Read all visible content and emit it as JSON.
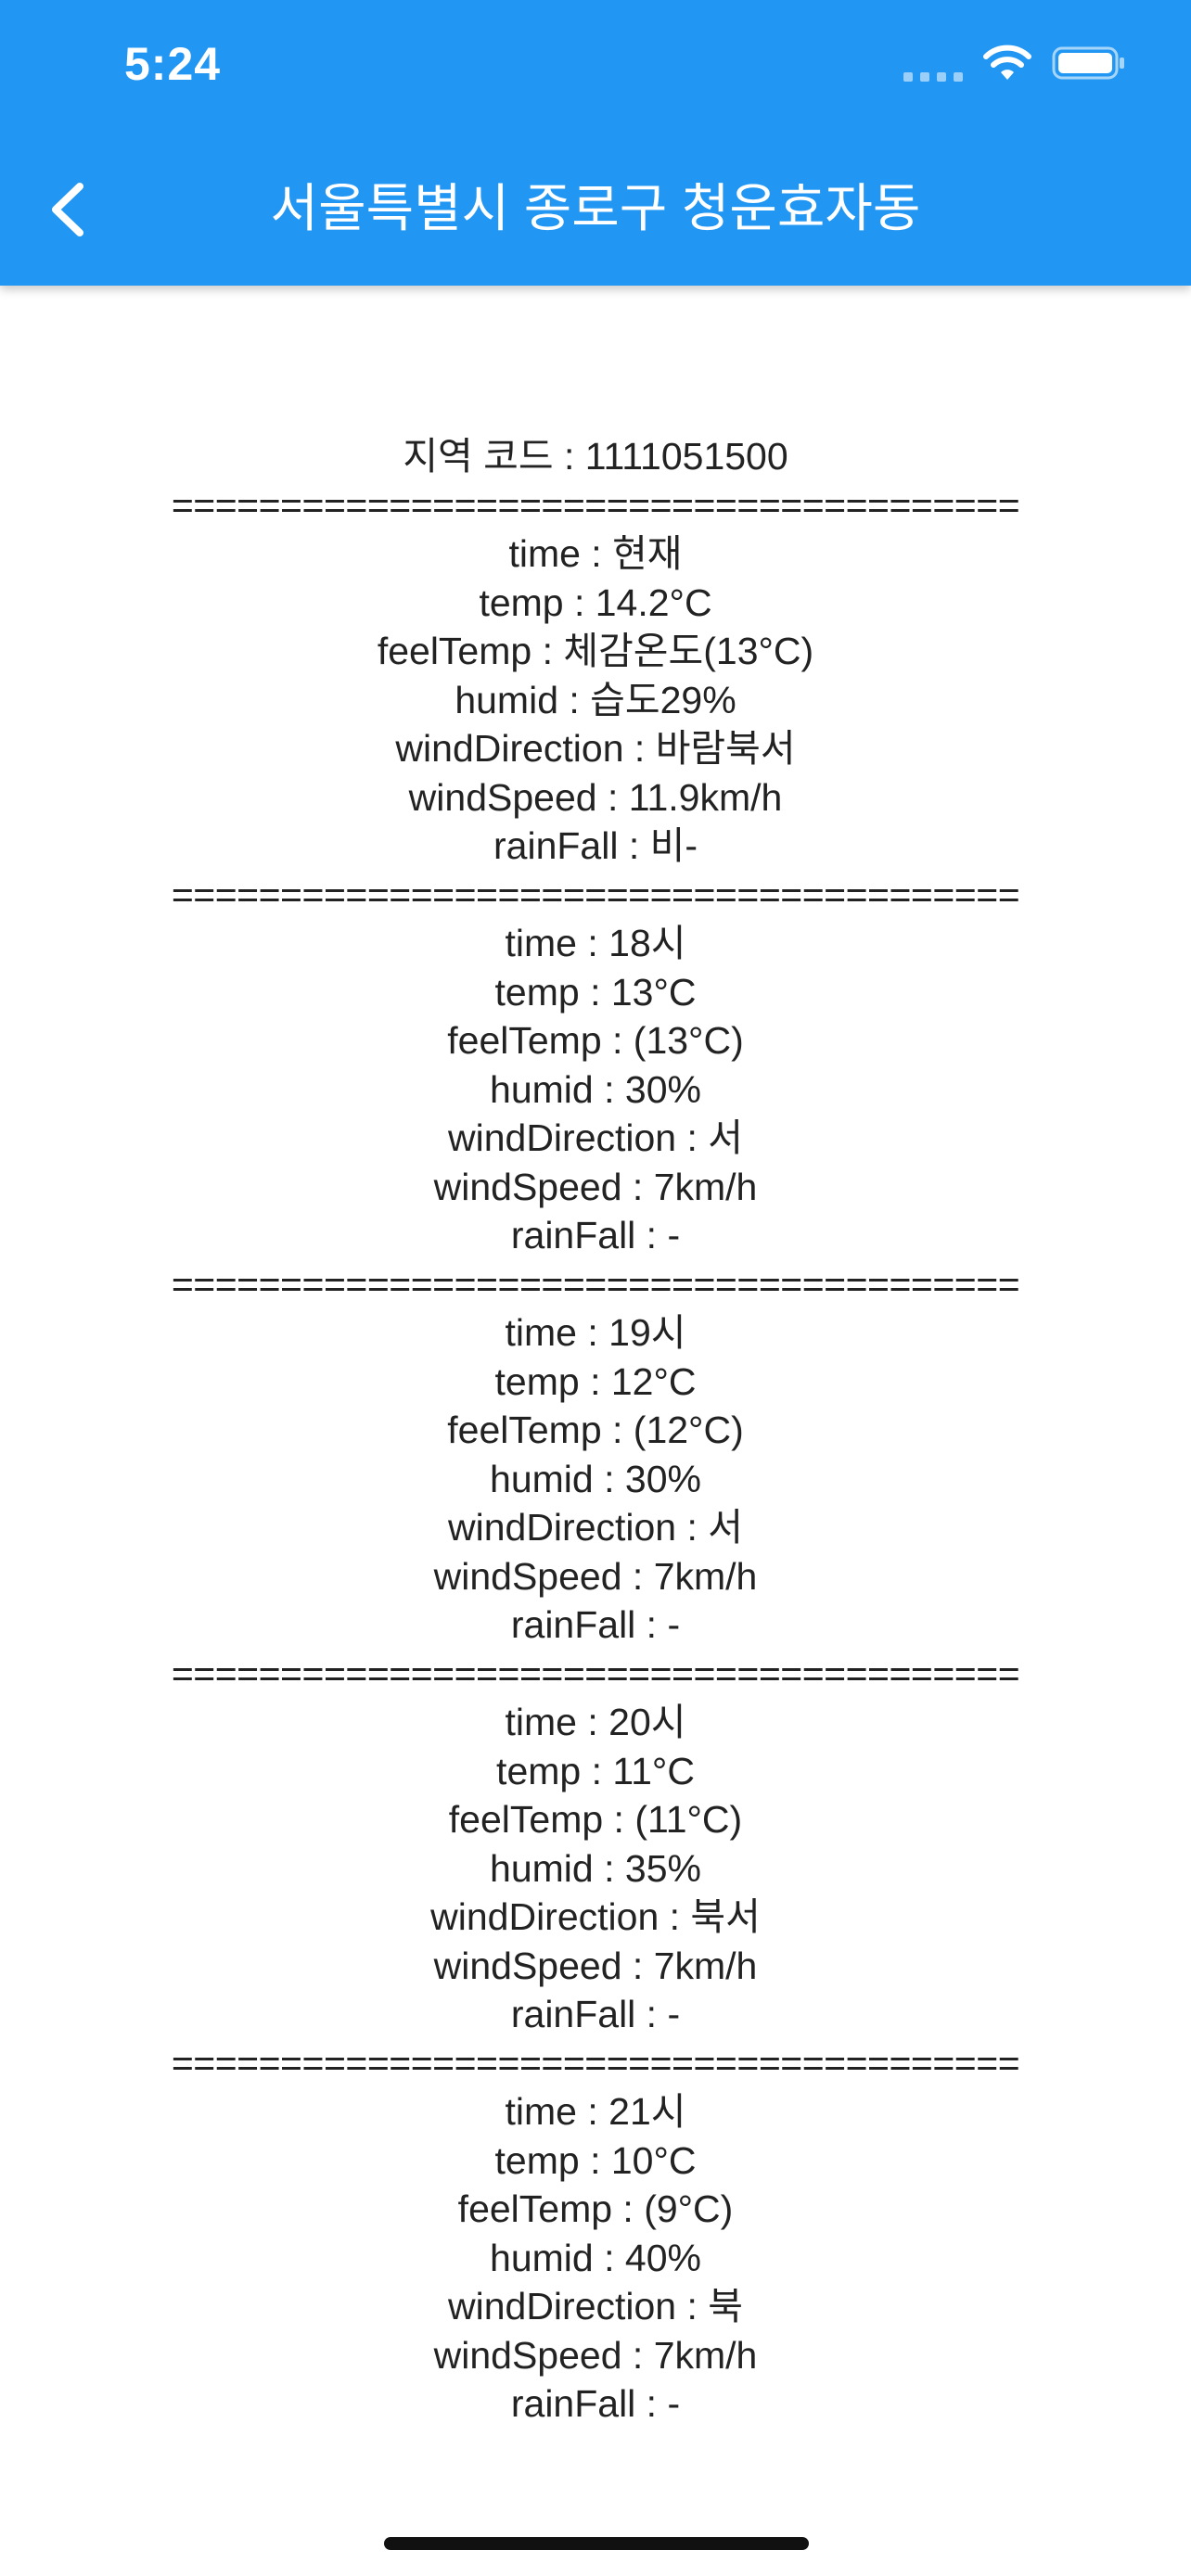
{
  "status_bar": {
    "time": "5:24"
  },
  "app_bar": {
    "title": "서울특별시 종로구 청운효자동",
    "back_icon": "chevron-left-icon"
  },
  "region_code_line": "지역 코드 : 1111051500",
  "separator": "=======================================",
  "forecasts": [
    {
      "time": "time : 현재",
      "temp": "temp : 14.2°C",
      "feelTemp": "feelTemp : 체감온도(13°C)",
      "humid": "humid : 습도29%",
      "windDirection": "windDirection : 바람북서",
      "windSpeed": "windSpeed : 11.9km/h",
      "rainFall": "rainFall : 비-"
    },
    {
      "time": "time : 18시",
      "temp": "temp : 13°C",
      "feelTemp": "feelTemp : (13°C)",
      "humid": "humid : 30%",
      "windDirection": "windDirection : 서",
      "windSpeed": "windSpeed : 7km/h",
      "rainFall": "rainFall : -"
    },
    {
      "time": "time : 19시",
      "temp": "temp : 12°C",
      "feelTemp": "feelTemp : (12°C)",
      "humid": "humid : 30%",
      "windDirection": "windDirection : 서",
      "windSpeed": "windSpeed : 7km/h",
      "rainFall": "rainFall : -"
    },
    {
      "time": "time : 20시",
      "temp": "temp : 11°C",
      "feelTemp": "feelTemp : (11°C)",
      "humid": "humid : 35%",
      "windDirection": "windDirection : 북서",
      "windSpeed": "windSpeed : 7km/h",
      "rainFall": "rainFall : -"
    },
    {
      "time": "time : 21시",
      "temp": "temp : 10°C",
      "feelTemp": "feelTemp : (9°C)",
      "humid": "humid : 40%",
      "windDirection": "windDirection : 북",
      "windSpeed": "windSpeed : 7km/h",
      "rainFall": "rainFall : -"
    }
  ],
  "colors": {
    "app_bar": "#2196F3",
    "text": "#222222"
  }
}
